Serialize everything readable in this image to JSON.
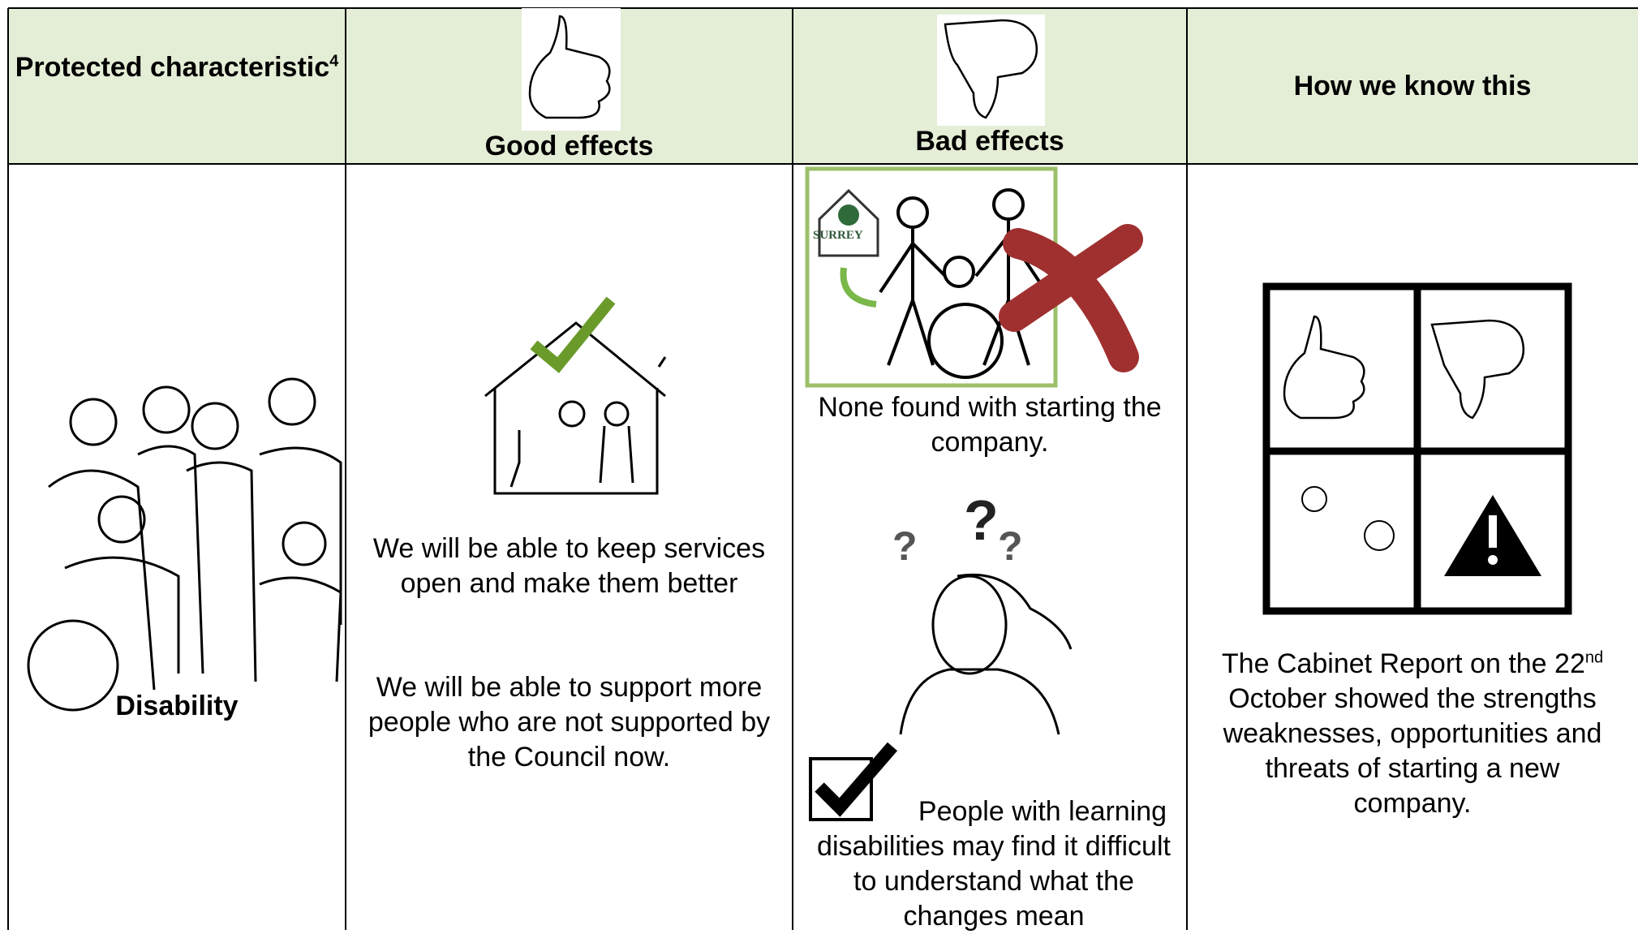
{
  "table": {
    "header": {
      "characteristic": "Protected characteristic",
      "characteristic_note": "4",
      "good": "Good effects",
      "bad": "Bad effects",
      "how": "How we know this"
    },
    "row": {
      "characteristic": "Disability",
      "good": [
        "We will be able to keep services open and make them better",
        "We will be able to support more people who are not supported by the Council now."
      ],
      "bad": {
        "none": "None found with starting the company.",
        "logo_text": "SURREY",
        "risk": "People with learning disabilities may find it difficult to understand what the changes mean"
      },
      "how": {
        "before": "The Cabinet Report on the 22",
        "sup": "nd",
        "after": " October showed the strengths weaknesses, opportunities and threats of starting a new company."
      }
    }
  }
}
